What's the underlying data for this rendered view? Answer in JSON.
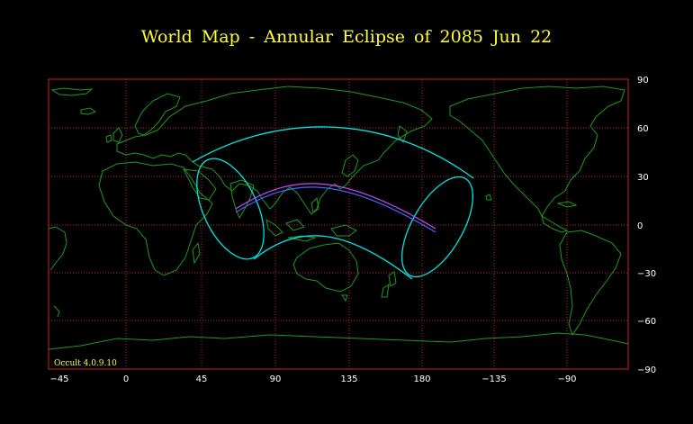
{
  "title": "World Map  -  Annular  Eclipse  of  2085 Jun 22",
  "credit": "Occult 4.0.9.10",
  "colors": {
    "background": "#000000",
    "title": "#ffff33",
    "grid": "#cc2222",
    "coastline": "#1f9a1f",
    "shadow_outline": "#00e5e5",
    "central_line": "#cc44ff"
  },
  "axes": {
    "x_tick_labels": [
      "−45",
      "0",
      "45",
      "90",
      "135",
      "180",
      "−135",
      "−90"
    ],
    "y_tick_labels": [
      "90",
      "60",
      "30",
      "0",
      "−30",
      "−60",
      "−90"
    ]
  }
}
